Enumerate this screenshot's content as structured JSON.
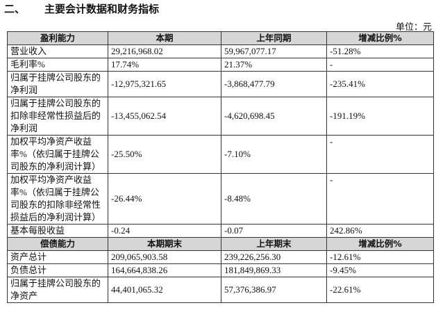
{
  "heading": {
    "number": "二、",
    "title": "主要会计数据和财务指标"
  },
  "unit": "单位：元",
  "table": {
    "sections": [
      {
        "header": [
          "盈利能力",
          "本期",
          "上年同期",
          "增减比例%"
        ],
        "rows": [
          [
            "营业收入",
            "29,216,968.02",
            "59,967,077.17",
            "-51.28%"
          ],
          [
            "毛利率%",
            "17.74%",
            "21.37%",
            "-"
          ],
          [
            "归属于挂牌公司股东的净利润",
            "-12,975,321.65",
            "-3,868,477.79",
            "-235.41%"
          ],
          [
            "归属于挂牌公司股东的扣除非经常性损益后的净利润",
            "-13,455,062.54",
            "-4,620,698.45",
            "-191.19%"
          ],
          [
            "加权平均净资产收益率%（依归属于挂牌公司股东的净利润计算）",
            "-25.50%",
            "-7.10%",
            "-"
          ],
          [
            "加权平均净资产收益率%（依归属于挂牌公司股东的扣除非经常性损益后的净利润计算）",
            "-26.44%",
            "-8.48%",
            "-"
          ],
          [
            "基本每股收益",
            "-0.24",
            "-0.07",
            "242.86%"
          ]
        ]
      },
      {
        "header": [
          "偿债能力",
          "本期期末",
          "上年期末",
          "增减比例%"
        ],
        "rows": [
          [
            "资产总计",
            "209,065,903.58",
            "239,226,256.30",
            "-12.61%"
          ],
          [
            "负债总计",
            "164,664,838.26",
            "181,849,869.33",
            "-9.45%"
          ],
          [
            "归属于挂牌公司股东的净资产",
            "44,401,065.32",
            "57,376,386.97",
            "-22.61%"
          ]
        ]
      }
    ]
  }
}
